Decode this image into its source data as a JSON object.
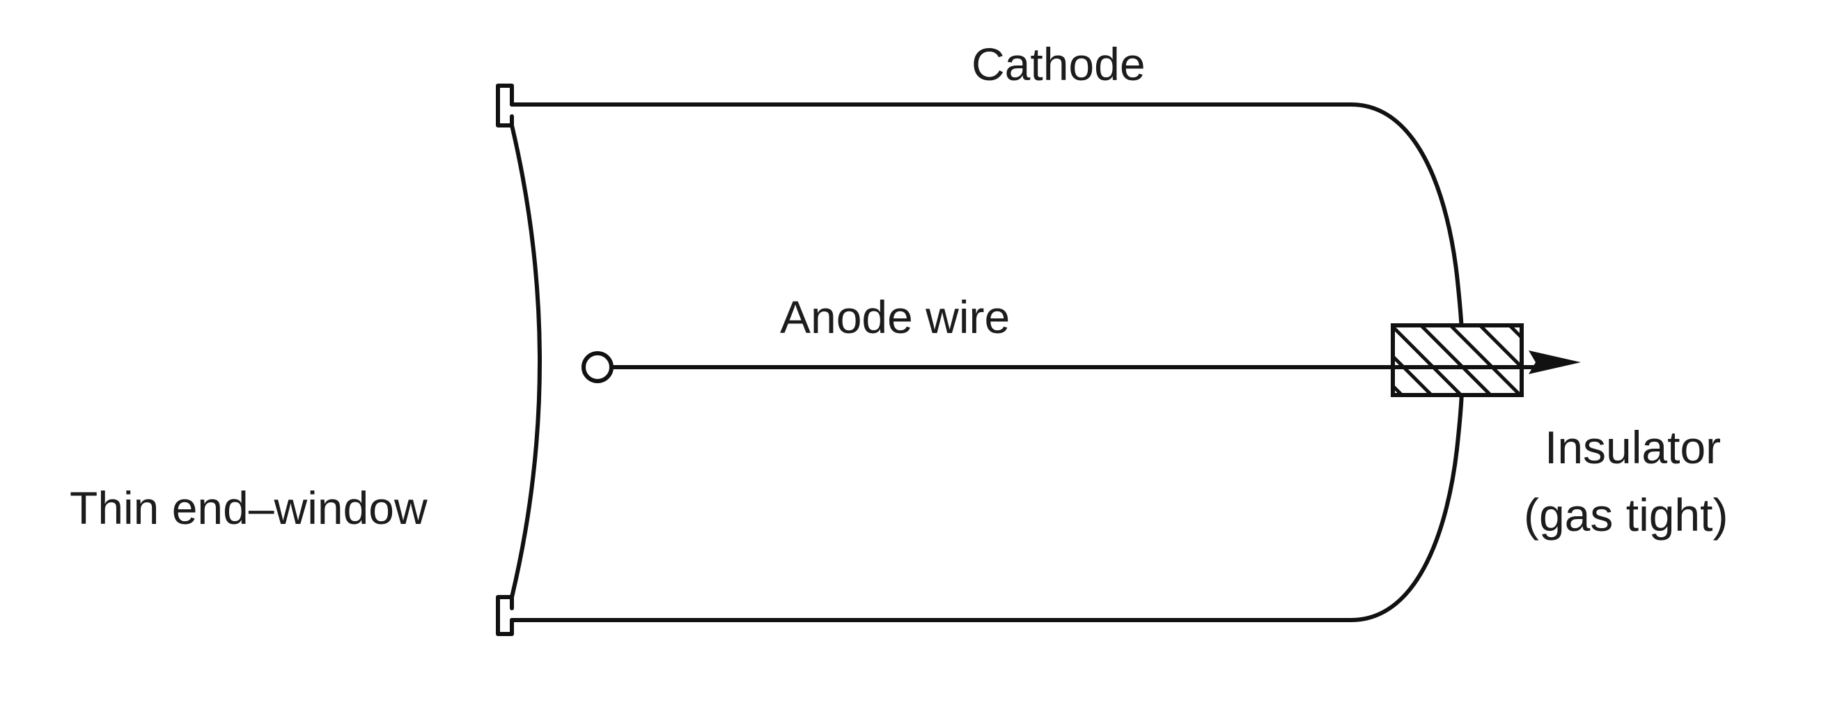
{
  "labels": {
    "cathode": "Cathode",
    "anode_wire": "Anode wire",
    "window": "Thin end–window",
    "insulator_line1": "Insulator",
    "insulator_line2": "(gas tight)"
  },
  "colors": {
    "ink": "#111111",
    "text": "#1c1c1c",
    "background": "#ffffff"
  }
}
